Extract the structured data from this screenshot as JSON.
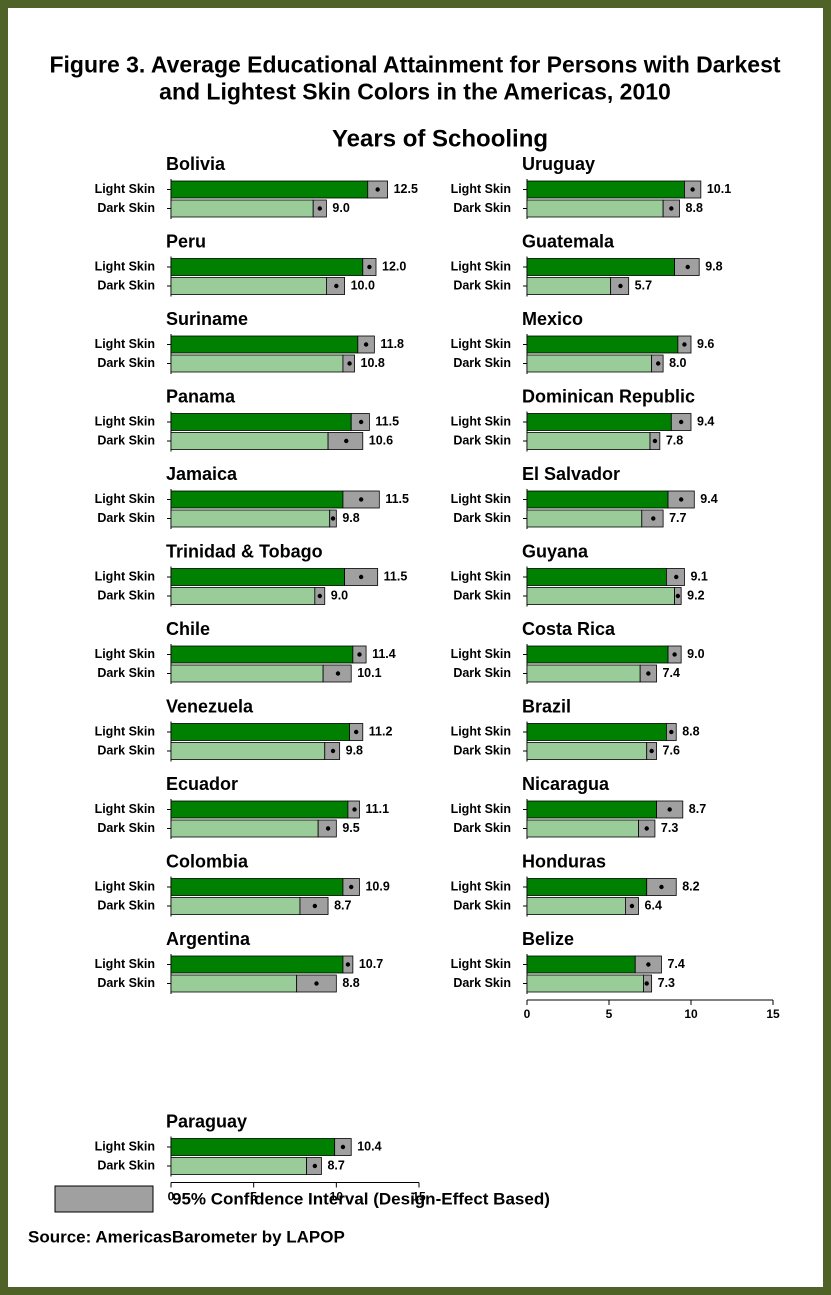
{
  "chart_data": {
    "type": "ci-bar",
    "title": "Figure 3. Average Educational Attainment for Persons with Darkest and Lightest Skin Colors in the Americas, 2010",
    "xlabel": "Years of Schooling",
    "series": [
      {
        "name": "Light Skin",
        "color": "#008000"
      },
      {
        "name": "Dark Skin",
        "color": "#99cc99"
      }
    ],
    "ci_color": "#a0a0a0",
    "legend": "95% Confidence Interval (Design-Effect Based)",
    "source": "Source: AmericasBarometer by  LAPOP",
    "xlim": [
      0,
      15
    ],
    "xticks": [
      0,
      5,
      10,
      15
    ],
    "columns": [
      [
        {
          "name": "Bolivia",
          "values": [
            12.5,
            9.0
          ],
          "value_labels": [
            "12.5",
            "9.0"
          ],
          "ci": [
            [
              11.9,
              13.1
            ],
            [
              8.6,
              9.4
            ]
          ]
        },
        {
          "name": "Peru",
          "values": [
            12.0,
            10.0
          ],
          "value_labels": [
            "12.0",
            "10.0"
          ],
          "ci": [
            [
              11.6,
              12.4
            ],
            [
              9.4,
              10.5
            ]
          ]
        },
        {
          "name": "Suriname",
          "values": [
            11.8,
            10.8
          ],
          "value_labels": [
            "11.8",
            "10.8"
          ],
          "ci": [
            [
              11.3,
              12.3
            ],
            [
              10.4,
              11.1
            ]
          ]
        },
        {
          "name": "Panama",
          "values": [
            11.5,
            10.6
          ],
          "value_labels": [
            "11.5",
            "10.6"
          ],
          "ci": [
            [
              10.9,
              12.0
            ],
            [
              9.5,
              11.6
            ]
          ]
        },
        {
          "name": "Jamaica",
          "values": [
            11.5,
            9.8
          ],
          "value_labels": [
            "11.5",
            "9.8"
          ],
          "ci": [
            [
              10.4,
              12.6
            ],
            [
              9.6,
              10.0
            ]
          ]
        },
        {
          "name": "Trinidad & Tobago",
          "values": [
            11.5,
            9.0
          ],
          "value_labels": [
            "11.5",
            "9.0"
          ],
          "ci": [
            [
              10.5,
              12.5
            ],
            [
              8.7,
              9.3
            ]
          ]
        },
        {
          "name": "Chile",
          "values": [
            11.4,
            10.1
          ],
          "value_labels": [
            "11.4",
            "10.1"
          ],
          "ci": [
            [
              11.0,
              11.8
            ],
            [
              9.2,
              10.9
            ]
          ]
        },
        {
          "name": "Venezuela",
          "values": [
            11.2,
            9.8
          ],
          "value_labels": [
            "11.2",
            "9.8"
          ],
          "ci": [
            [
              10.8,
              11.6
            ],
            [
              9.3,
              10.2
            ]
          ]
        },
        {
          "name": "Ecuador",
          "values": [
            11.1,
            9.5
          ],
          "value_labels": [
            "11.1",
            "9.5"
          ],
          "ci": [
            [
              10.7,
              11.4
            ],
            [
              8.9,
              10.0
            ]
          ]
        },
        {
          "name": "Colombia",
          "values": [
            10.9,
            8.7
          ],
          "value_labels": [
            "10.9",
            "8.7"
          ],
          "ci": [
            [
              10.4,
              11.4
            ],
            [
              7.8,
              9.5
            ]
          ]
        },
        {
          "name": "Argentina",
          "values": [
            10.7,
            8.8
          ],
          "value_labels": [
            "10.7",
            "8.8"
          ],
          "ci": [
            [
              10.4,
              11.0
            ],
            [
              7.6,
              10.0
            ]
          ]
        },
        {
          "name": "Paraguay",
          "values": [
            10.4,
            8.7
          ],
          "value_labels": [
            "10.4",
            "8.7"
          ],
          "ci": [
            [
              9.9,
              10.9
            ],
            [
              8.2,
              9.1
            ]
          ]
        }
      ],
      [
        {
          "name": "Uruguay",
          "values": [
            10.1,
            8.8
          ],
          "value_labels": [
            "10.1",
            "8.8"
          ],
          "ci": [
            [
              9.6,
              10.6
            ],
            [
              8.3,
              9.3
            ]
          ]
        },
        {
          "name": "Guatemala",
          "values": [
            9.8,
            5.7
          ],
          "value_labels": [
            "9.8",
            "5.7"
          ],
          "ci": [
            [
              9.0,
              10.5
            ],
            [
              5.1,
              6.2
            ]
          ]
        },
        {
          "name": "Mexico",
          "values": [
            9.6,
            8.0
          ],
          "value_labels": [
            "9.6",
            "8.0"
          ],
          "ci": [
            [
              9.2,
              10.0
            ],
            [
              7.6,
              8.3
            ]
          ]
        },
        {
          "name": "Dominican Republic",
          "values": [
            9.4,
            7.8
          ],
          "value_labels": [
            "9.4",
            "7.8"
          ],
          "ci": [
            [
              8.8,
              10.0
            ],
            [
              7.5,
              8.1
            ]
          ]
        },
        {
          "name": "El Salvador",
          "values": [
            9.4,
            7.7
          ],
          "value_labels": [
            "9.4",
            "7.7"
          ],
          "ci": [
            [
              8.6,
              10.2
            ],
            [
              7.0,
              8.3
            ]
          ]
        },
        {
          "name": "Guyana",
          "values": [
            9.1,
            9.2
          ],
          "value_labels": [
            "9.1",
            "9.2"
          ],
          "ci": [
            [
              8.5,
              9.6
            ],
            [
              9.0,
              9.4
            ]
          ]
        },
        {
          "name": "Costa Rica",
          "values": [
            9.0,
            7.4
          ],
          "value_labels": [
            "9.0",
            "7.4"
          ],
          "ci": [
            [
              8.6,
              9.4
            ],
            [
              6.9,
              7.9
            ]
          ]
        },
        {
          "name": "Brazil",
          "values": [
            8.8,
            7.6
          ],
          "value_labels": [
            "8.8",
            "7.6"
          ],
          "ci": [
            [
              8.5,
              9.1
            ],
            [
              7.3,
              7.9
            ]
          ]
        },
        {
          "name": "Nicaragua",
          "values": [
            8.7,
            7.3
          ],
          "value_labels": [
            "8.7",
            "7.3"
          ],
          "ci": [
            [
              7.9,
              9.5
            ],
            [
              6.8,
              7.8
            ]
          ]
        },
        {
          "name": "Honduras",
          "values": [
            8.2,
            6.4
          ],
          "value_labels": [
            "8.2",
            "6.4"
          ],
          "ci": [
            [
              7.3,
              9.1
            ],
            [
              6.0,
              6.8
            ]
          ]
        },
        {
          "name": "Belize",
          "values": [
            7.4,
            7.3
          ],
          "value_labels": [
            "7.4",
            "7.3"
          ],
          "ci": [
            [
              6.6,
              8.2
            ],
            [
              7.1,
              7.6
            ]
          ]
        }
      ]
    ]
  }
}
